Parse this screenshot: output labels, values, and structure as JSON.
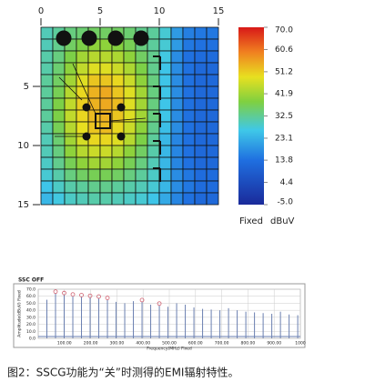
{
  "chart_data": [
    {
      "type": "heatmap",
      "xticks": [
        0,
        5,
        10,
        15
      ],
      "yticks": [
        5,
        10,
        15
      ],
      "xlim": [
        0,
        15
      ],
      "ylim": [
        0,
        15
      ],
      "clim": [
        -5,
        70
      ],
      "colorbar_ticks": [
        {
          "value": 70,
          "label": "70.0"
        },
        {
          "value": 60.6,
          "label": "60.6"
        },
        {
          "value": 51.2,
          "label": "51.2"
        },
        {
          "value": 41.9,
          "label": "41.9"
        },
        {
          "value": 32.5,
          "label": "32.5"
        },
        {
          "value": 23.1,
          "label": "23.1"
        },
        {
          "value": 13.8,
          "label": "13.8"
        },
        {
          "value": 4.4,
          "label": "4.4"
        },
        {
          "value": -5,
          "label": "-5.0"
        }
      ],
      "colorbar_label": "Fixed",
      "unit": "dBuV",
      "z": [
        [
          30,
          32,
          34,
          35,
          36,
          36,
          36,
          35,
          33,
          32,
          28,
          20,
          16,
          15,
          15
        ],
        [
          30,
          33,
          36,
          38,
          40,
          40,
          39,
          37,
          34,
          32,
          28,
          20,
          15,
          14,
          14
        ],
        [
          31,
          34,
          38,
          42,
          44,
          44,
          43,
          40,
          36,
          33,
          27,
          18,
          14,
          13,
          13
        ],
        [
          31,
          35,
          40,
          45,
          48,
          48,
          46,
          43,
          38,
          33,
          26,
          18,
          14,
          12,
          12
        ],
        [
          32,
          36,
          42,
          48,
          52,
          52,
          50,
          46,
          40,
          34,
          26,
          18,
          14,
          12,
          12
        ],
        [
          32,
          37,
          44,
          50,
          54,
          55,
          52,
          48,
          42,
          34,
          26,
          18,
          14,
          12,
          12
        ],
        [
          32,
          38,
          45,
          51,
          54,
          55,
          53,
          48,
          42,
          34,
          26,
          18,
          14,
          12,
          12
        ],
        [
          32,
          38,
          45,
          50,
          53,
          54,
          52,
          48,
          42,
          34,
          26,
          18,
          14,
          12,
          12
        ],
        [
          31,
          37,
          44,
          49,
          52,
          53,
          50,
          46,
          40,
          33,
          25,
          18,
          14,
          12,
          12
        ],
        [
          30,
          35,
          42,
          47,
          50,
          50,
          48,
          44,
          38,
          32,
          24,
          17,
          14,
          12,
          12
        ],
        [
          30,
          34,
          40,
          44,
          46,
          46,
          44,
          40,
          36,
          31,
          24,
          17,
          14,
          12,
          12
        ],
        [
          29,
          33,
          37,
          40,
          42,
          42,
          40,
          37,
          34,
          30,
          24,
          17,
          14,
          12,
          12
        ],
        [
          28,
          31,
          34,
          36,
          37,
          37,
          36,
          34,
          32,
          29,
          24,
          18,
          15,
          13,
          13
        ],
        [
          26,
          29,
          31,
          32,
          33,
          33,
          32,
          31,
          30,
          28,
          24,
          18,
          15,
          13,
          13
        ],
        [
          24,
          27,
          29,
          30,
          31,
          31,
          30,
          29,
          28,
          26,
          22,
          17,
          14,
          12,
          12
        ]
      ]
    },
    {
      "type": "spectrum",
      "title": "SSC OFF",
      "xlabel": "Frequency(MHz) Fixed",
      "ylabel": "Amplitude(dBuV) Fixed",
      "xlim": [
        0,
        1000
      ],
      "ylim": [
        0,
        70
      ],
      "xticks": [
        {
          "value": 100,
          "label": "100.00"
        },
        {
          "value": 200,
          "label": "200.00"
        },
        {
          "value": 300,
          "label": "300.00"
        },
        {
          "value": 400,
          "label": "400.00"
        },
        {
          "value": 500,
          "label": "500.00"
        },
        {
          "value": 600,
          "label": "600.00"
        },
        {
          "value": 700,
          "label": "700.00"
        },
        {
          "value": 800,
          "label": "800.00"
        },
        {
          "value": 900,
          "label": "900.00"
        },
        1000
      ],
      "yticks": [
        {
          "value": 0,
          "label": "0.0"
        },
        {
          "value": 10,
          "label": "10.0"
        },
        {
          "value": 20,
          "label": "20.0"
        },
        {
          "value": 30,
          "label": "30.0"
        },
        {
          "value": 40,
          "label": "40.0"
        },
        {
          "value": 50,
          "label": "50.0"
        },
        {
          "value": 60,
          "label": "60.0"
        },
        {
          "value": 70,
          "label": "70.0"
        }
      ],
      "color": "#6a7fb0",
      "x": [
        33,
        66,
        99,
        132,
        165,
        198,
        231,
        264,
        297,
        330,
        363,
        396,
        429,
        462,
        495,
        528,
        561,
        594,
        627,
        660,
        693,
        726,
        759,
        792,
        825,
        858,
        891,
        924,
        957,
        990
      ],
      "values": [
        55,
        64,
        62,
        60,
        59,
        58,
        57,
        55,
        52,
        50,
        53,
        52,
        48,
        47,
        45,
        50,
        48,
        44,
        42,
        41,
        40,
        43,
        40,
        38,
        37,
        36,
        35,
        38,
        34,
        33
      ],
      "markers": {
        "color": "#d06070",
        "x": [
          66,
          99,
          132,
          165,
          198,
          231,
          264,
          396,
          462
        ],
        "values": [
          64,
          62,
          60,
          59,
          58,
          57,
          55,
          52,
          47
        ]
      }
    },
    {
      "type": "caption",
      "text": "图2：SSCG功能为“关”时测得的EMI辐射特性。"
    }
  ]
}
